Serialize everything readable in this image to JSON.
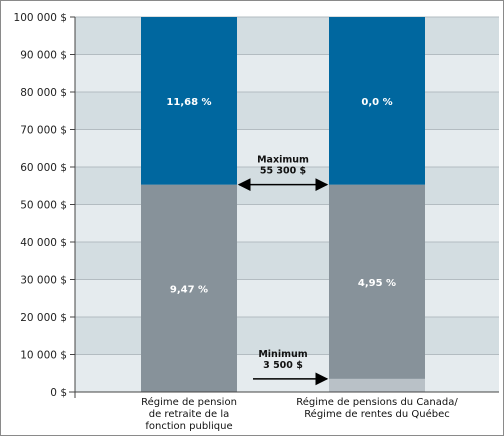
{
  "chart_data": {
    "type": "bar",
    "stacked": true,
    "y_axis": {
      "min": 0,
      "max": 100000,
      "step": 10000,
      "tick_suffix": " $",
      "grid": true
    },
    "categories": [
      "Régime de pension\nde retraite de la\nfonction publique",
      "Régime de pensions du Canada/\nRégime de rentes du Québec"
    ],
    "series": [
      {
        "values": [
          0,
          3500
        ],
        "labels": [
          "",
          ""
        ],
        "color": "#b9c1c7"
      },
      {
        "values": [
          55300,
          51800
        ],
        "labels": [
          "9,47 %",
          "4,95 %"
        ],
        "color": "#87929a"
      },
      {
        "values": [
          44700,
          44700
        ],
        "labels": [
          "11,68 %",
          "0,0 %"
        ],
        "color": "#00679f"
      }
    ],
    "annotations": [
      {
        "lines": [
          "Maximum",
          "55 300 $"
        ],
        "value": 55300,
        "arrow": "double"
      },
      {
        "lines": [
          "Minimum",
          "3 500 $"
        ],
        "value": 3500,
        "arrow": "right"
      }
    ],
    "colors": {
      "band_dark": "#d3dde1",
      "band_light": "#e5ebee",
      "grid": "#b3bcc1"
    }
  }
}
